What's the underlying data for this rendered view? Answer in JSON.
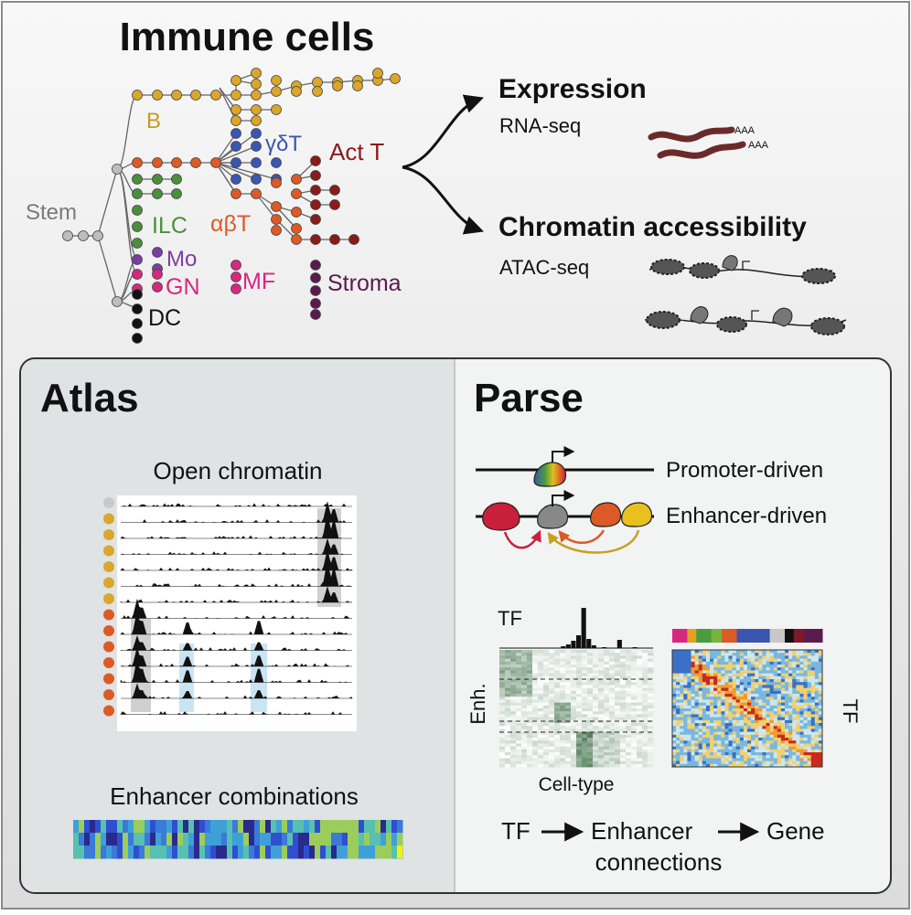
{
  "top": {
    "title": "Immune cells",
    "lineages": {
      "stem": "Stem",
      "b": "B",
      "gdt": "γδT",
      "actt": "Act T",
      "ilc": "ILC",
      "abt": "αβT",
      "mo": "Mo",
      "gn": "GN",
      "mf": "MF",
      "stroma": "Stroma",
      "dc": "DC"
    },
    "expression": {
      "title": "Expression",
      "method": "RNA-seq",
      "polya": "AAA"
    },
    "chromatin": {
      "title": "Chromatin accessibility",
      "method": "ATAC-seq"
    }
  },
  "atlas": {
    "title": "Atlas",
    "open_chromatin": "Open chromatin",
    "enhancer_combinations": "Enhancer combinations",
    "row_colors": [
      "#c9c9c9",
      "#dba62a",
      "#dba62a",
      "#dba62a",
      "#dba62a",
      "#dba62a",
      "#dba62a",
      "#dd5a26",
      "#dd5a26",
      "#dd5a26",
      "#dd5a26",
      "#dd5a26",
      "#dd5a26",
      "#dd5a26"
    ]
  },
  "parse": {
    "title": "Parse",
    "promoter_driven": "Promoter-driven",
    "enhancer_driven": "Enhancer-driven",
    "tf_top": "TF",
    "enh_label": "Enh.",
    "tf_side": "TF",
    "cell_type": "Cell-type",
    "flow": {
      "tf": "TF",
      "enhancer": "Enhancer",
      "gene": "Gene",
      "connections": "connections"
    },
    "celltype_colors": [
      "#d6287f",
      "#e0a020",
      "#4a9d3c",
      "#78b33c",
      "#dc5a26",
      "#3a56b0",
      "#3a56b0",
      "#c8c8c8",
      "#111111",
      "#7a1a2a",
      "#5a1a50"
    ]
  },
  "colors": {
    "stem": "#bdbdbd",
    "b": "#dba62a",
    "t": "#dd5a26",
    "gdt": "#3a56b0",
    "actt": "#8b1a1a",
    "ilc": "#4a8f3c",
    "mo": "#7a3ea0",
    "gn": "#d6287f",
    "stroma": "#5a1a50",
    "dc": "#111111"
  }
}
